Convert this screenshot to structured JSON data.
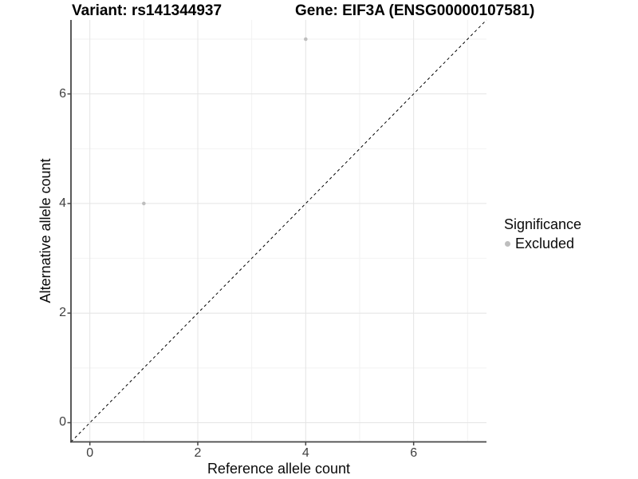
{
  "titles": {
    "variant": "Variant: rs141344937",
    "gene": "Gene: EIF3A (ENSG00000107581)"
  },
  "legend": {
    "title": "Significance",
    "items": [
      {
        "label": "Excluded",
        "color": "#bebebe"
      }
    ]
  },
  "chart_data": {
    "type": "scatter",
    "title": "Variant: rs141344937 — Gene: EIF3A (ENSG00000107581)",
    "xlabel": "Reference allele count",
    "ylabel": "Alternative allele count",
    "xlim": [
      -0.35,
      7.35
    ],
    "ylim": [
      -0.35,
      7.35
    ],
    "x_ticks": [
      0,
      2,
      4,
      6
    ],
    "y_ticks": [
      0,
      2,
      4,
      6
    ],
    "x_minor_ticks": [
      1,
      3,
      5,
      7
    ],
    "y_minor_ticks": [
      1,
      3,
      5,
      7
    ],
    "grid": true,
    "legend_position": "right",
    "series": [
      {
        "name": "Excluded",
        "color": "#bebebe",
        "points": [
          {
            "x": 1,
            "y": 4
          },
          {
            "x": 4,
            "y": 7
          }
        ]
      }
    ],
    "reference_line": {
      "type": "abline",
      "slope": 1,
      "intercept": 0,
      "style": "dashed",
      "color": "#000000"
    },
    "colors": {
      "major_grid": "#e4e4e4",
      "minor_grid": "#f2f2f2",
      "axis_line": "#474747",
      "tick_text": "#404040",
      "point": "#bebebe"
    }
  }
}
